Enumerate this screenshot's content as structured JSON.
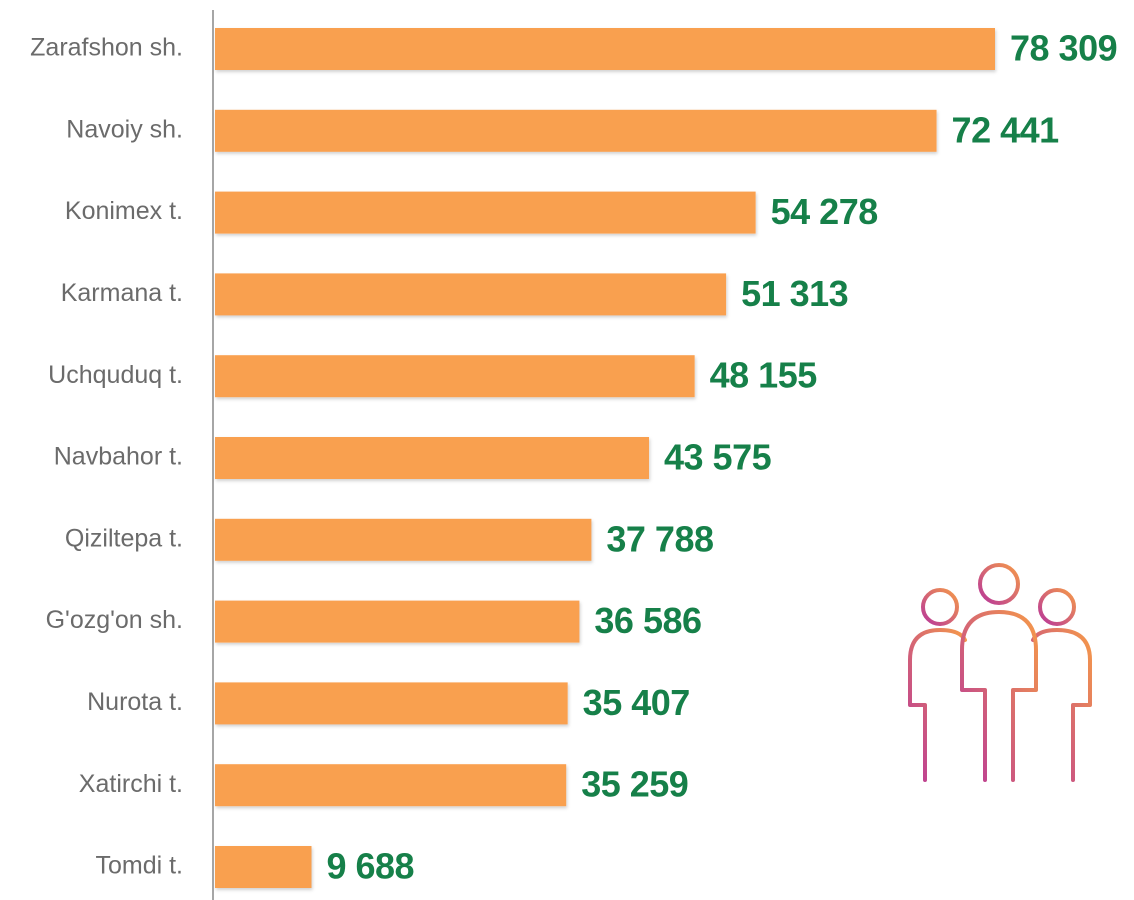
{
  "chart_data": {
    "type": "bar",
    "orientation": "horizontal",
    "categories": [
      "Zarafshon sh.",
      "Navoiy sh.",
      "Konimex t.",
      "Karmana t.",
      "Uchquduq t.",
      "Navbahor t.",
      "Qiziltepa t.",
      "G'ozg'on sh.",
      "Nurota t.",
      "Xatirchi t.",
      "Tomdi t."
    ],
    "values": [
      78309,
      72441,
      54278,
      51313,
      48155,
      43575,
      37788,
      36586,
      35407,
      35259,
      9688
    ],
    "value_labels": [
      "78 309",
      "72 441",
      "54 278",
      "51 313",
      "48 155",
      "43 575",
      "37 788",
      "36 586",
      "35 407",
      "35 259",
      "9 688"
    ],
    "color": "#f9a04f",
    "label_color": "#168049"
  }
}
